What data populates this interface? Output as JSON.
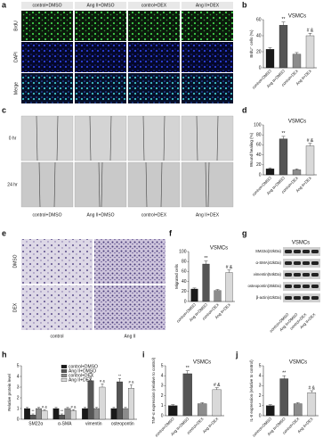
{
  "figure": {
    "panels": [
      "a",
      "b",
      "c",
      "d",
      "e",
      "f",
      "g",
      "h",
      "i",
      "j"
    ],
    "a": {
      "columns": [
        "control+DMSO",
        "Ang II+DMSO",
        "control+DEX",
        "Ang II+DEX"
      ],
      "rows": [
        "BrdU",
        "DAPI",
        "Merge"
      ]
    },
    "c": {
      "rows": [
        "0 hr",
        "24 hr"
      ],
      "columns": [
        "control+DMSO",
        "Ang II+DMSO",
        "control+DEX",
        "Ang II+DEX"
      ]
    },
    "e": {
      "rows": [
        "DMSO",
        "DEX"
      ],
      "columns": [
        "control",
        "Ang II"
      ]
    },
    "g": {
      "title": "VSMCs",
      "bands": [
        "SM22α(22kDa)",
        "α-SMA(42kDa)",
        "vimentin(54kDa)",
        "osteopontin(35kDa)",
        "β-actin(42kDa)"
      ],
      "lanes": [
        "control+DMSO",
        "Ang II+DMSO",
        "control+DEX",
        "Ang II+DEX"
      ]
    }
  },
  "chart_data": [
    {
      "type": "bar",
      "title": "VSMCs",
      "ylabel": "BrdU⁺ cells (%)",
      "categories": [
        "control+DMSO",
        "Ang II+DMSO",
        "control+DEX",
        "Ang II+DEX"
      ],
      "values": [
        23,
        53,
        17,
        40
      ],
      "errors": [
        2,
        4,
        2,
        3
      ],
      "annotations": [
        null,
        "**",
        null,
        "# &"
      ],
      "colors": [
        "#1a1a1a",
        "#555555",
        "#8c8c8c",
        "#d9d9d9"
      ],
      "ylim": [
        0,
        60
      ],
      "yticks": [
        0,
        20,
        40,
        60
      ]
    },
    {
      "type": "bar",
      "title": "VSMCs",
      "ylabel": "Wound healing (%)",
      "categories": [
        "control+DMSO",
        "Ang II+DMSO",
        "control+DEX",
        "Ang II+DEX"
      ],
      "values": [
        12,
        72,
        10,
        58
      ],
      "errors": [
        2,
        5,
        2,
        5
      ],
      "annotations": [
        null,
        "**",
        null,
        "# &"
      ],
      "colors": [
        "#1a1a1a",
        "#555555",
        "#8c8c8c",
        "#d9d9d9"
      ],
      "ylim": [
        0,
        100
      ],
      "yticks": [
        0,
        20,
        40,
        60,
        80,
        100
      ]
    },
    {
      "type": "bar",
      "title": "VSMCs",
      "ylabel": "Migrated cells",
      "categories": [
        "control+DMSO",
        "Ang II+DMSO",
        "control+DEX",
        "Ang II+DEX"
      ],
      "values": [
        25,
        75,
        22,
        58
      ],
      "errors": [
        2,
        6,
        2,
        5
      ],
      "annotations": [
        null,
        "**",
        null,
        "# &"
      ],
      "colors": [
        "#1a1a1a",
        "#555555",
        "#8c8c8c",
        "#d9d9d9"
      ],
      "ylim": [
        0,
        100
      ],
      "yticks": [
        0,
        20,
        40,
        60,
        80,
        100
      ]
    },
    {
      "type": "grouped-bar",
      "ylabel": "Relative protein level",
      "categories": [
        "SM22α",
        "α-SMA",
        "vimentin",
        "osteopontin"
      ],
      "series": [
        {
          "name": "control+DMSO",
          "color": "#1a1a1a",
          "values": [
            1.0,
            1.0,
            1.0,
            1.0
          ],
          "errors": [
            0.1,
            0.1,
            0.1,
            0.1
          ],
          "annotations": [
            null,
            null,
            null,
            null
          ]
        },
        {
          "name": "Ang II+DMSO",
          "color": "#555555",
          "values": [
            0.4,
            0.4,
            3.6,
            3.5
          ],
          "errors": [
            0.1,
            0.1,
            0.4,
            0.3
          ],
          "annotations": [
            "**",
            "**",
            "**",
            "**"
          ]
        },
        {
          "name": "control+DEX",
          "color": "#8c8c8c",
          "values": [
            1.0,
            1.0,
            1.0,
            1.0
          ],
          "errors": [
            0.1,
            0.1,
            0.1,
            0.1
          ],
          "annotations": [
            null,
            null,
            null,
            null
          ]
        },
        {
          "name": "Ang II+DEX",
          "color": "#d9d9d9",
          "values": [
            0.8,
            0.8,
            3.0,
            2.9
          ],
          "errors": [
            0.1,
            0.1,
            0.3,
            0.3
          ],
          "annotations": [
            "# &",
            "# &",
            "# &",
            "# &"
          ]
        }
      ],
      "ylim": [
        0,
        5
      ],
      "yticks": [
        0,
        1,
        2,
        3,
        4,
        5
      ]
    },
    {
      "type": "bar",
      "title": "VSMCs",
      "ylabel": "TNF-α expression (relative to control)",
      "categories": [
        "control+DMSO",
        "Ang II+DMSO",
        "control+DEX",
        "Ang II+DEX"
      ],
      "values": [
        1.0,
        4.2,
        1.2,
        2.6
      ],
      "errors": [
        0.1,
        0.3,
        0.1,
        0.2
      ],
      "annotations": [
        null,
        "**",
        null,
        "# &"
      ],
      "colors": [
        "#1a1a1a",
        "#555555",
        "#8c8c8c",
        "#d9d9d9"
      ],
      "ylim": [
        0,
        5
      ],
      "yticks": [
        0,
        1,
        2,
        3,
        4,
        5
      ]
    },
    {
      "type": "bar",
      "title": "VSMCs",
      "ylabel": "IL-6 expression (relative to control)",
      "categories": [
        "control+DMSO",
        "Ang II+DMSO",
        "control+DEX",
        "Ang II+DEX"
      ],
      "values": [
        1.0,
        3.7,
        1.2,
        2.3
      ],
      "errors": [
        0.1,
        0.3,
        0.1,
        0.2
      ],
      "annotations": [
        null,
        "**",
        null,
        "# &"
      ],
      "colors": [
        "#1a1a1a",
        "#555555",
        "#8c8c8c",
        "#d9d9d9"
      ],
      "ylim": [
        0,
        5
      ],
      "yticks": [
        0,
        1,
        2,
        3,
        4,
        5
      ]
    }
  ]
}
